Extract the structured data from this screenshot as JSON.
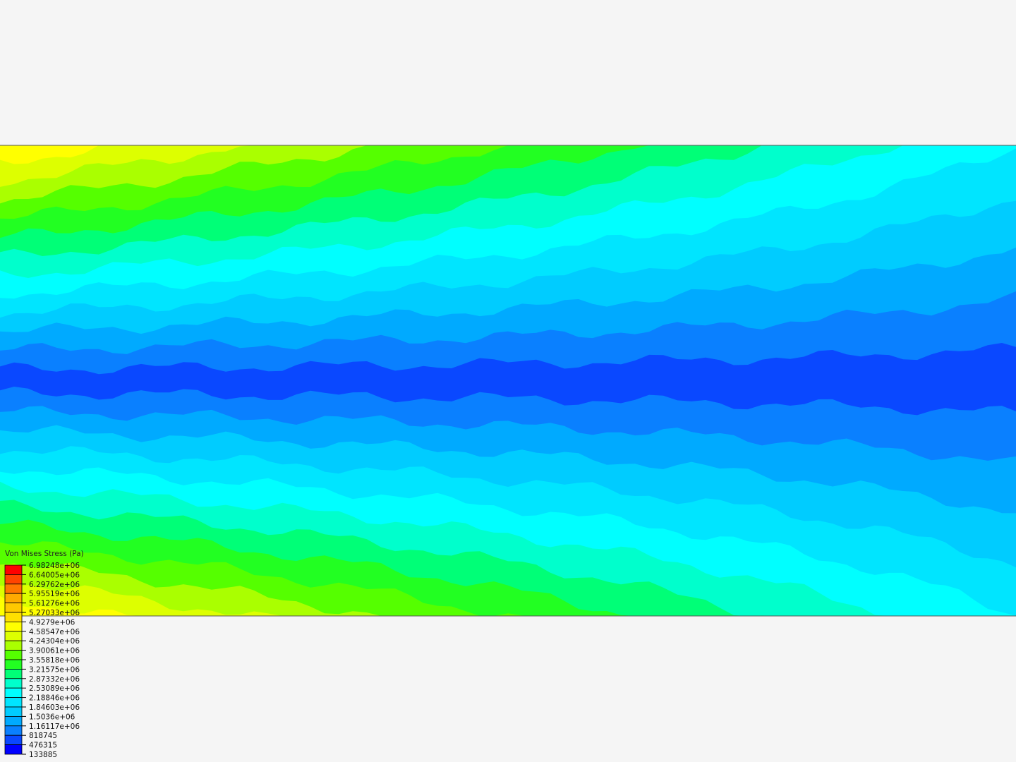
{
  "chart_data": {
    "type": "heatmap",
    "title": "Von Mises Stress (Pa)",
    "legend_position": "bottom-left",
    "levels": [
      "6.98248e+06",
      "6.64005e+06",
      "6.29762e+06",
      "5.95519e+06",
      "5.61276e+06",
      "5.27033e+06",
      "4.9279e+06",
      "4.58547e+06",
      "4.24304e+06",
      "3.90061e+06",
      "3.55818e+06",
      "3.21575e+06",
      "2.87332e+06",
      "2.53089e+06",
      "2.18846e+06",
      "1.84603e+06",
      "1.5036e+06",
      "1.16117e+06",
      "818745",
      "476315",
      "133885"
    ],
    "level_values": [
      6982480,
      6640050,
      6297620,
      5955190,
      5612760,
      5270330,
      4927900,
      4585470,
      4243040,
      3900610,
      3558180,
      3215750,
      2873320,
      2530890,
      2188460,
      1846030,
      1503600,
      1161170,
      818745,
      476315,
      133885
    ],
    "band_colors": [
      "#ff0000",
      "#ff4400",
      "#ff7700",
      "#ffaa00",
      "#ffc800",
      "#ffe000",
      "#ffff00",
      "#ddff00",
      "#aaff00",
      "#55ff00",
      "#22ff22",
      "#00ff77",
      "#00ffcc",
      "#00ffff",
      "#00e5ff",
      "#00ccff",
      "#00aaff",
      "#0a80ff",
      "#0a48ff",
      "#0000ff"
    ],
    "background": "#f5f5f5"
  }
}
